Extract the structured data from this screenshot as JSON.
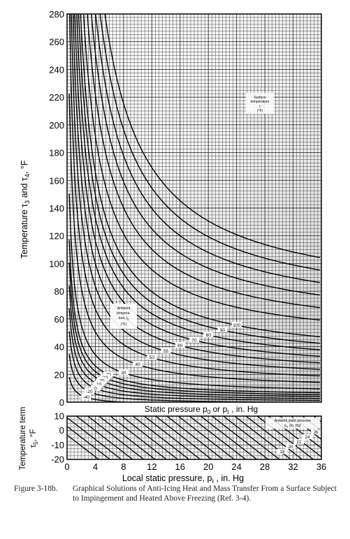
{
  "chart_data": [
    {
      "type": "line",
      "description_of_curves": "family of curves, each labelled with a temperature value",
      "ylabel": "Temperature τ3 and τ4, °F",
      "xlabel": "Static pressure p0 or pℓ , in. Hg",
      "ylim": [
        0,
        280
      ],
      "y_ticks": [
        "0",
        "20",
        "40",
        "60",
        "80",
        "100",
        "120",
        "140",
        "160",
        "180",
        "200",
        "220",
        "240",
        "260",
        "280"
      ],
      "grid": true,
      "annotations": [
        "Surface temperature t (°F)",
        "Ambient temperature, t0 (°F)"
      ],
      "surface_temperature_labels": [
        "30",
        "40",
        "50",
        "55",
        "60",
        "70",
        "80",
        "90",
        "100"
      ],
      "ambient_temperature_labels": [
        "40",
        "30",
        "20",
        "10",
        "0",
        "-20",
        "-40"
      ]
    },
    {
      "type": "line",
      "ylabel": "Temperature term τ5, °F",
      "xlabel": "Local static pressure, pℓ , in. Hg",
      "x_ticks": [
        "0",
        "4",
        "8",
        "12",
        "16",
        "20",
        "24",
        "28",
        "32",
        "36"
      ],
      "y_ticks": [
        "10",
        "0",
        "-10",
        "-20"
      ],
      "xlim": [
        0,
        36
      ],
      "ylim": [
        -20,
        10
      ],
      "grid": true,
      "annotations": [
        "Ambient static pressure",
        "p0 (in. Hg)"
      ],
      "ambient_pressure_labels": [
        "26",
        "24",
        "22",
        "20",
        "18"
      ]
    }
  ],
  "caption": {
    "number": "Figure 3-18b.",
    "text": "Graphical Solutions of Anti-Icing Heat and Mass Transfer From a Surface Subject to Impingement and Heated Above Freezing (Ref. 3-4)."
  },
  "labels": {
    "top_ylabel_a": "Temperature ",
    "top_ylabel_tau3": "τ",
    "top_ylabel_3": "3",
    "top_ylabel_and": " and ",
    "top_ylabel_tau4": "τ",
    "top_ylabel_4": "4",
    "top_ylabel_unit": ", °F",
    "top_xlabel": "Static pressure p",
    "top_xlabel_0": "0",
    "top_xlabel_or": " or p",
    "top_xlabel_l": "ℓ",
    "top_xlabel_unit": " , in. Hg",
    "bottom_ylabel_1": "Temperature term",
    "bottom_ylabel_2": "τ",
    "bottom_ylabel_2s": "5",
    "bottom_ylabel_2u": ", °F",
    "bottom_xlabel": "Local static pressure, p",
    "bottom_xlabel_l": "ℓ",
    "bottom_xlabel_unit": " , in. Hg",
    "surface_note_1": "Surface",
    "surface_note_2": "temperature",
    "surface_note_3": "t",
    "surface_note_4": "(°F)",
    "ambient_note_1": "Ambient",
    "ambient_note_2": "tempera-",
    "ambient_note_3": "ture, t",
    "ambient_note_3s": "0",
    "ambient_note_4": "(°F)",
    "pressure_note_1": "Ambient static pressure",
    "pressure_note_2": "p",
    "pressure_note_2s": "0",
    "pressure_note_3": "(in. Hg)"
  }
}
